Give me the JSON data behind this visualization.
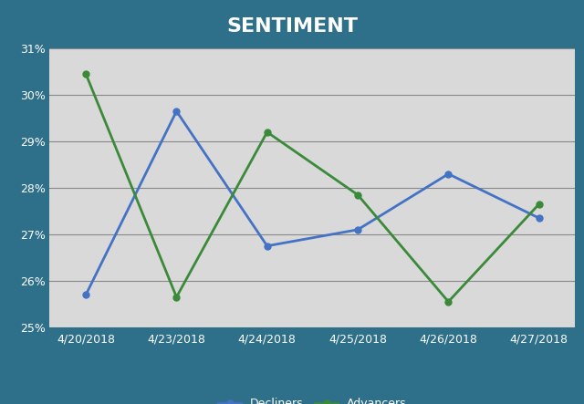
{
  "title": "SENTIMENT",
  "title_color": "#ffffff",
  "outer_bg_color": "#2e6f8a",
  "plot_bg_color": "#d9d9d9",
  "x_labels": [
    "4/20/2018",
    "4/23/2018",
    "4/24/2018",
    "4/25/2018",
    "4/26/2018",
    "4/27/2018"
  ],
  "decliners": [
    25.7,
    29.65,
    26.75,
    27.1,
    28.3,
    27.35
  ],
  "advancers": [
    30.45,
    25.65,
    29.2,
    27.85,
    25.55,
    27.65
  ],
  "decliners_color": "#4472c4",
  "advancers_color": "#3a8a3a",
  "legend_text_color": "#ffffff",
  "ylim_min": 25.0,
  "ylim_max": 31.0,
  "yticks": [
    25,
    26,
    27,
    28,
    29,
    30,
    31
  ],
  "grid_color": "#a0a0a0",
  "line_width": 2.0,
  "marker": "o",
  "marker_size": 5,
  "title_fontsize": 16,
  "tick_fontsize": 9
}
